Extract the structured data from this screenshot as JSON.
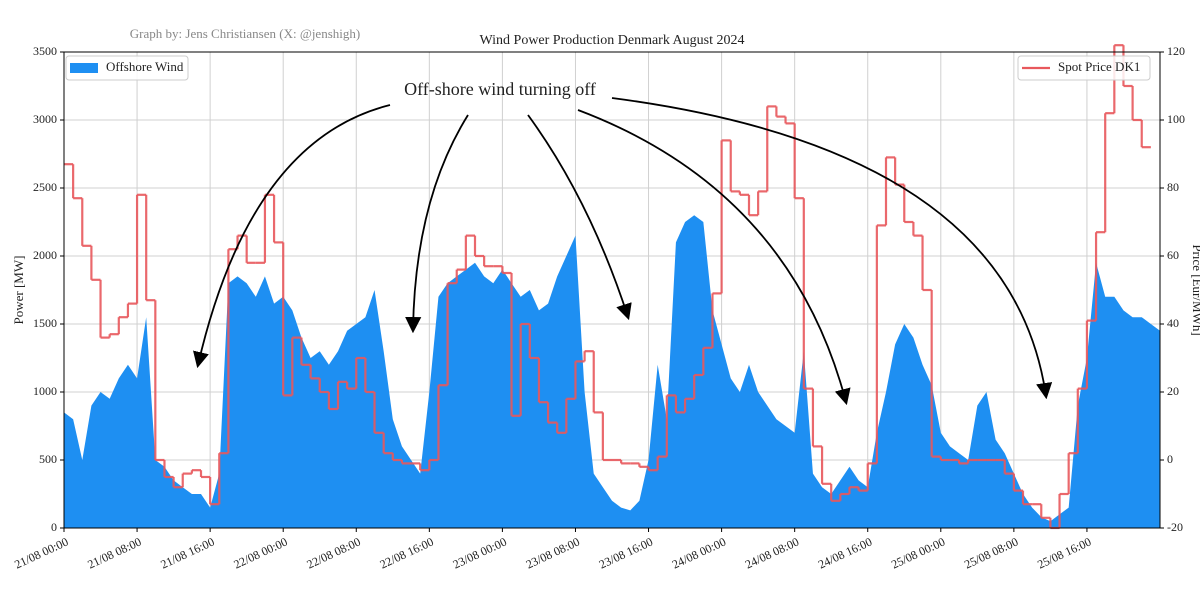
{
  "chart_data": {
    "type": "area",
    "title": "Wind Power Production Denmark August 2024",
    "credit": "Graph by: Jens Christiansen (X: @jenshigh)",
    "annotation": "Off-shore wind turning off",
    "ylabel": "Power [MW]",
    "y2label": "Price [Eur/MWh]",
    "grid": true,
    "xlim": [
      0,
      120
    ],
    "xticks": [
      {
        "value": 0,
        "label": "21/08 00:00"
      },
      {
        "value": 8,
        "label": "21/08 08:00"
      },
      {
        "value": 16,
        "label": "21/08 16:00"
      },
      {
        "value": 24,
        "label": "22/08 00:00"
      },
      {
        "value": 32,
        "label": "22/08 08:00"
      },
      {
        "value": 40,
        "label": "22/08 16:00"
      },
      {
        "value": 48,
        "label": "23/08 00:00"
      },
      {
        "value": 56,
        "label": "23/08 08:00"
      },
      {
        "value": 64,
        "label": "23/08 16:00"
      },
      {
        "value": 72,
        "label": "24/08 00:00"
      },
      {
        "value": 80,
        "label": "24/08 08:00"
      },
      {
        "value": 88,
        "label": "24/08 16:00"
      },
      {
        "value": 96,
        "label": "25/08 00:00"
      },
      {
        "value": 104,
        "label": "25/08 08:00"
      },
      {
        "value": 112,
        "label": "25/08 16:00"
      }
    ],
    "ylim": [
      0,
      3500
    ],
    "yticks": [
      0,
      500,
      1000,
      1500,
      2000,
      2500,
      3000,
      3500
    ],
    "y2lim": [
      -20,
      120
    ],
    "y2ticks": [
      -20,
      0,
      20,
      40,
      60,
      80,
      100,
      120
    ],
    "series": [
      {
        "name": "Offshore Wind",
        "type": "area",
        "color": "#1e8ff2",
        "legend": "upper left",
        "x": [
          0,
          1,
          2,
          3,
          4,
          5,
          6,
          7,
          8,
          9,
          10,
          11,
          12,
          13,
          14,
          15,
          16,
          17,
          18,
          19,
          20,
          21,
          22,
          23,
          24,
          25,
          26,
          27,
          28,
          29,
          30,
          31,
          32,
          33,
          34,
          35,
          36,
          37,
          38,
          39,
          40,
          41,
          42,
          43,
          44,
          45,
          46,
          47,
          48,
          49,
          50,
          51,
          52,
          53,
          54,
          55,
          56,
          57,
          58,
          59,
          60,
          61,
          62,
          63,
          64,
          65,
          66,
          67,
          68,
          69,
          70,
          71,
          72,
          73,
          74,
          75,
          76,
          77,
          78,
          79,
          80,
          81,
          82,
          83,
          84,
          85,
          86,
          87,
          88,
          89,
          90,
          91,
          92,
          93,
          94,
          95,
          96,
          97,
          98,
          99,
          100,
          101,
          102,
          103,
          104,
          105,
          106,
          107,
          108,
          109,
          110,
          111,
          112,
          113,
          114,
          115,
          116,
          117,
          118,
          119,
          120
        ],
        "values": [
          850,
          800,
          500,
          900,
          1000,
          950,
          1100,
          1200,
          1100,
          1550,
          500,
          450,
          350,
          300,
          250,
          250,
          150,
          400,
          1800,
          1850,
          1800,
          1700,
          1850,
          1650,
          1700,
          1600,
          1400,
          1250,
          1300,
          1200,
          1300,
          1450,
          1500,
          1550,
          1750,
          1300,
          800,
          600,
          500,
          400,
          1000,
          1700,
          1800,
          1850,
          1900,
          1950,
          1850,
          1800,
          1900,
          1800,
          1700,
          1750,
          1600,
          1650,
          1850,
          2000,
          2150,
          1000,
          400,
          300,
          200,
          150,
          130,
          200,
          500,
          1200,
          800,
          2100,
          2250,
          2300,
          2250,
          1600,
          1350,
          1100,
          1000,
          1200,
          1000,
          900,
          800,
          750,
          700,
          1300,
          400,
          300,
          250,
          350,
          450,
          350,
          300,
          700,
          1000,
          1350,
          1500,
          1400,
          1200,
          1050,
          700,
          600,
          550,
          500,
          900,
          1000,
          650,
          550,
          400,
          250,
          150,
          80,
          50,
          100,
          150,
          900,
          1250,
          1950,
          1700,
          1700,
          1600,
          1550,
          1550,
          1500,
          1450
        ]
      },
      {
        "name": "Spot Price DK1",
        "type": "step",
        "axis": "y2",
        "color": "#e8585c",
        "legend": "upper right",
        "x": [
          0,
          1,
          2,
          3,
          4,
          5,
          6,
          7,
          8,
          9,
          10,
          11,
          12,
          13,
          14,
          15,
          16,
          17,
          18,
          19,
          20,
          21,
          22,
          23,
          24,
          25,
          26,
          27,
          28,
          29,
          30,
          31,
          32,
          33,
          34,
          35,
          36,
          37,
          38,
          39,
          40,
          41,
          42,
          43,
          44,
          45,
          46,
          47,
          48,
          49,
          50,
          51,
          52,
          53,
          54,
          55,
          56,
          57,
          58,
          59,
          60,
          61,
          62,
          63,
          64,
          65,
          66,
          67,
          68,
          69,
          70,
          71,
          72,
          73,
          74,
          75,
          76,
          77,
          78,
          79,
          80,
          81,
          82,
          83,
          84,
          85,
          86,
          87,
          88,
          89,
          90,
          91,
          92,
          93,
          94,
          95,
          96,
          97,
          98,
          99,
          100,
          101,
          102,
          103,
          104,
          105,
          106,
          107,
          108,
          109,
          110,
          111,
          112,
          113,
          114,
          115,
          116,
          117,
          118
        ],
        "values": [
          87,
          77,
          63,
          53,
          36,
          37,
          42,
          46,
          78,
          47,
          0,
          -5,
          -8,
          -4,
          -3,
          -5,
          -13,
          2,
          62,
          66,
          58,
          58,
          78,
          64,
          19,
          36,
          28,
          24,
          20,
          15,
          23,
          21,
          30,
          20,
          8,
          2,
          0,
          -1,
          -1,
          -3,
          0,
          22,
          52,
          56,
          66,
          60,
          57,
          57,
          55,
          13,
          40,
          30,
          17,
          11,
          8,
          18,
          29,
          32,
          14,
          0,
          0,
          -1,
          -1,
          -2,
          -3,
          1,
          19,
          14,
          18,
          25,
          33,
          49,
          94,
          79,
          78,
          72,
          79,
          104,
          101,
          99,
          77,
          21,
          4,
          -7,
          -12,
          -10,
          -8,
          -9,
          -1,
          69,
          89,
          81,
          70,
          66,
          50,
          1,
          0,
          0,
          -1,
          0,
          0,
          0,
          0,
          -4,
          -9,
          -13,
          -13,
          -17,
          -20,
          -10,
          2,
          21,
          41,
          67,
          102,
          122,
          110,
          100,
          92
        ]
      }
    ]
  }
}
